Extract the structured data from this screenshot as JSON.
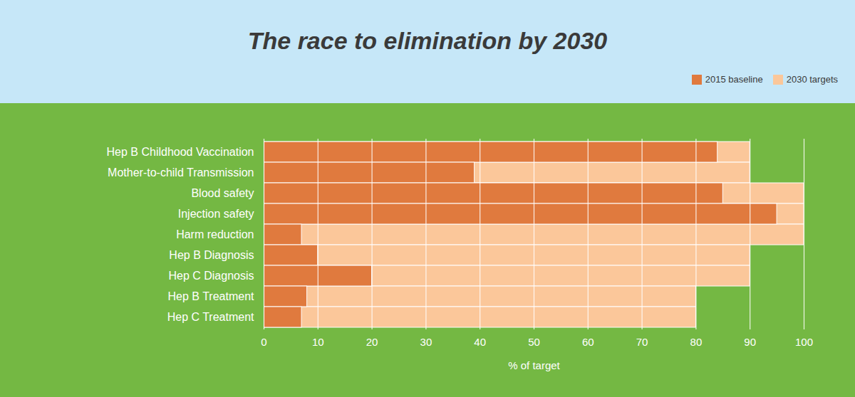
{
  "chart_data": {
    "type": "bar",
    "orientation": "horizontal",
    "title": "The race to elimination by 2030",
    "categories": [
      "Hep B Childhood Vaccination",
      "Mother-to-child Transmission",
      "Blood safety",
      "Injection safety",
      "Harm reduction",
      "Hep B Diagnosis",
      "Hep C Diagnosis",
      "Hep B Treatment",
      "Hep C Treatment"
    ],
    "series": [
      {
        "name": "2015 baseline",
        "color": "#e07a3e",
        "values": [
          84,
          39,
          85,
          95,
          7,
          10,
          20,
          8,
          7
        ]
      },
      {
        "name": "2030 targets",
        "color": "#fbc79a",
        "values": [
          90,
          90,
          100,
          100,
          100,
          90,
          90,
          80,
          80
        ]
      }
    ],
    "stacked": false,
    "xlim": [
      0,
      100
    ],
    "xticks": [
      0,
      10,
      20,
      30,
      40,
      50,
      60,
      70,
      80,
      90,
      100
    ],
    "xlabel": "% of target",
    "grid": true,
    "legend": "upper right"
  }
}
